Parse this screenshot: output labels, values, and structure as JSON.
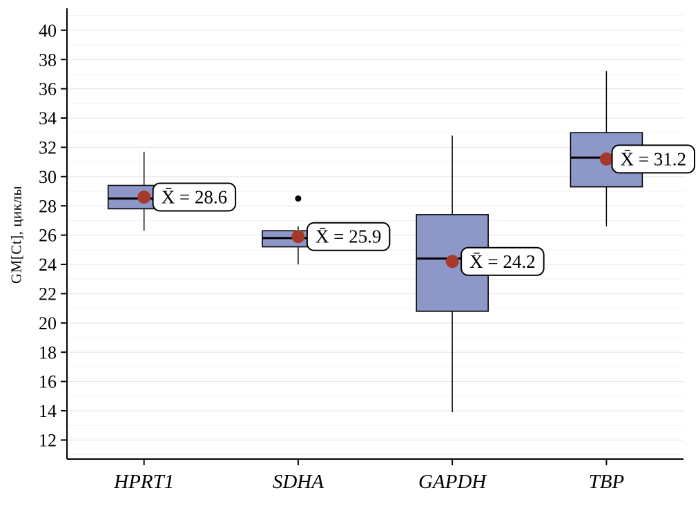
{
  "chart_data": {
    "type": "boxplot",
    "title": "",
    "xlabel": "",
    "ylabel": "GM[Ct], циклы",
    "ylim": [
      10.7,
      41.5
    ],
    "yticks": [
      12,
      14,
      16,
      18,
      20,
      22,
      24,
      26,
      28,
      30,
      32,
      34,
      36,
      38,
      40
    ],
    "grid": true,
    "legend": false,
    "categories": [
      "HPRT1",
      "SDHA",
      "GAPDH",
      "TBP"
    ],
    "series": [
      {
        "category": "HPRT1",
        "whisker_low": 26.3,
        "q1": 27.8,
        "median": 28.5,
        "q3": 29.4,
        "whisker_high": 31.7,
        "mean": 28.6,
        "outliers": [],
        "mean_label": "X̄ = 28.6"
      },
      {
        "category": "SDHA",
        "whisker_low": 24.0,
        "q1": 25.2,
        "median": 25.8,
        "q3": 26.3,
        "whisker_high": 26.6,
        "mean": 25.9,
        "outliers": [
          28.5
        ],
        "mean_label": "X̄ = 25.9"
      },
      {
        "category": "GAPDH",
        "whisker_low": 13.9,
        "q1": 20.8,
        "median": 24.4,
        "q3": 27.4,
        "whisker_high": 32.8,
        "mean": 24.2,
        "outliers": [],
        "mean_label": "X̄ = 24.2"
      },
      {
        "category": "TBP",
        "whisker_low": 26.6,
        "q1": 29.3,
        "median": 31.3,
        "q3": 33.0,
        "whisker_high": 37.2,
        "mean": 31.2,
        "outliers": [],
        "mean_label": "X̄ = 31.2"
      }
    ],
    "colors": {
      "box_fill": "#8d97c8",
      "box_border": "#000000",
      "median": "#000000",
      "whisker": "#000000",
      "outlier": "#000000",
      "mean_dot": "#a63a2a",
      "grid_major": "#e3e3e3",
      "grid_minor": "#f2f2f2",
      "axis": "#000000",
      "label_box_fill": "#ffffff",
      "label_box_border": "#000000",
      "text": "#000000"
    }
  }
}
